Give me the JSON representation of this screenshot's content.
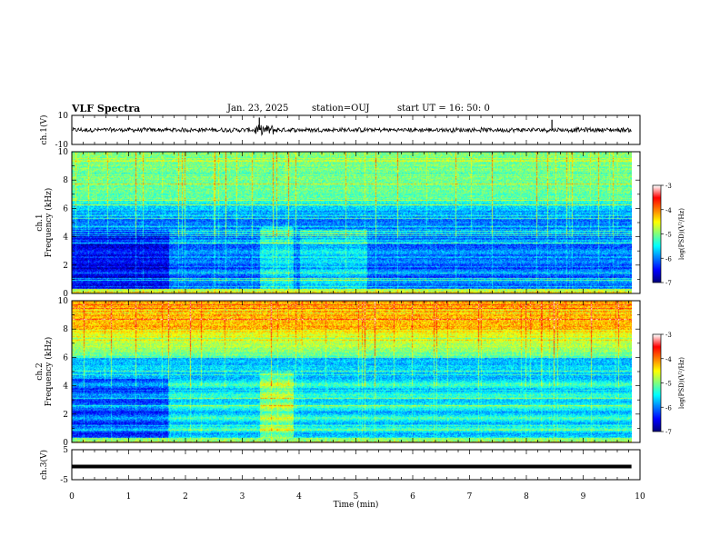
{
  "header": {
    "title": "VLF Spectra",
    "date": "Jan. 23, 2025",
    "station": "station=OUJ",
    "start": "start  UT =  16: 50: 0"
  },
  "colors": {
    "colormap": [
      "#00007f",
      "#0000ff",
      "#007fff",
      "#00ffff",
      "#7fff7f",
      "#ffff00",
      "#ff7f00",
      "#ff0000",
      "#ffffff"
    ],
    "trace": "#000000"
  },
  "chart_data": [
    {
      "type": "line",
      "name": "ch1-waveform",
      "ylabel": "ch.1(V)",
      "ylim": [
        -10,
        10
      ],
      "yticklabels": [
        "10",
        "-10"
      ],
      "x": [
        0,
        1.7,
        3.3,
        3.45,
        4.0,
        6.0,
        8.45,
        9.85
      ],
      "values": [
        0,
        0.5,
        8.5,
        -2,
        0.5,
        0.3,
        7,
        0
      ],
      "note_level": "noise about 0 V with spikes near 3.3 and 8.45 min"
    },
    {
      "type": "heatmap",
      "name": "ch1-spectrogram",
      "ylabel": "ch.1\nFrequency (kHz)",
      "ylim": [
        0,
        10
      ],
      "yticklabels": [
        "0",
        "2",
        "4",
        "6",
        "8",
        "10"
      ],
      "colorbar": {
        "label": "log(PSD)(V²/Hz)",
        "range": [
          -7,
          -3
        ],
        "ticklabels": [
          "-3",
          "-4",
          "-5",
          "-6",
          "-7"
        ]
      }
    },
    {
      "type": "heatmap",
      "name": "ch2-spectrogram",
      "ylabel": "ch.2\nFrequency (kHz)",
      "ylim": [
        0,
        10
      ],
      "yticklabels": [
        "0",
        "2",
        "4",
        "6",
        "8",
        "10"
      ],
      "colorbar": {
        "label": "log(PSD)(V²/Hz)",
        "range": [
          -7,
          -3
        ],
        "ticklabels": [
          "-3",
          "-4",
          "-5",
          "-6",
          "-7"
        ]
      }
    },
    {
      "type": "line",
      "name": "ch3-waveform",
      "ylabel": "ch.3(V)",
      "ylim": [
        -5,
        5
      ],
      "yticklabels": [
        "5",
        "-5"
      ],
      "x": [
        0,
        9.85
      ],
      "values": [
        -0.6,
        -0.6
      ]
    }
  ],
  "xaxis": {
    "label": "Time (min)",
    "xlim": [
      0,
      10
    ],
    "ticklabels": [
      "0",
      "1",
      "2",
      "3",
      "4",
      "5",
      "6",
      "7",
      "8",
      "9",
      "10"
    ]
  }
}
